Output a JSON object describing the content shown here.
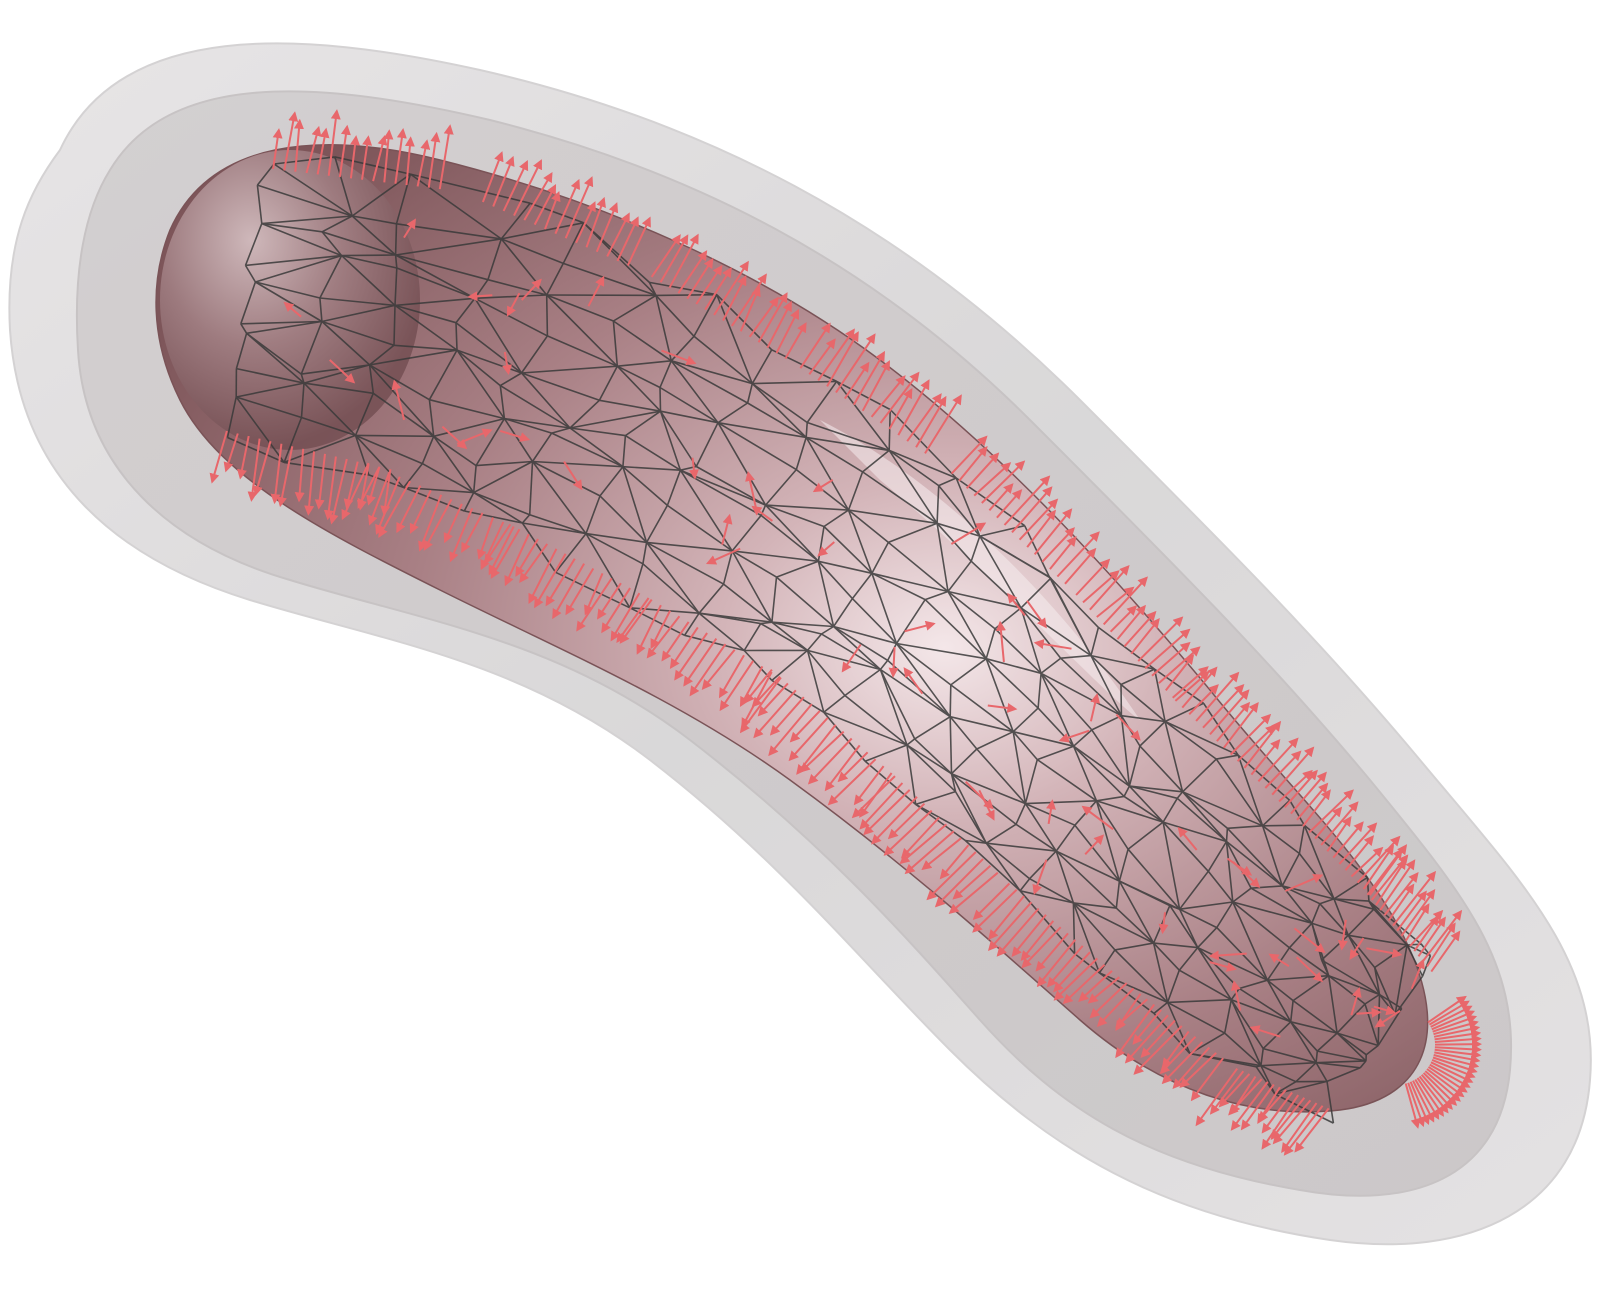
{
  "scene": {
    "background_color": "#ffffff",
    "outer_shell_color": "#dcdadb",
    "middle_shell_color": "#cfcbcc",
    "core_color": "#9e7478",
    "core_highlight_color": "#f3e6e8",
    "wireframe_color": "#3a3a3a",
    "normal_arrow_color": "#e8676b",
    "icons": [
      "organ-mesh-render"
    ]
  }
}
